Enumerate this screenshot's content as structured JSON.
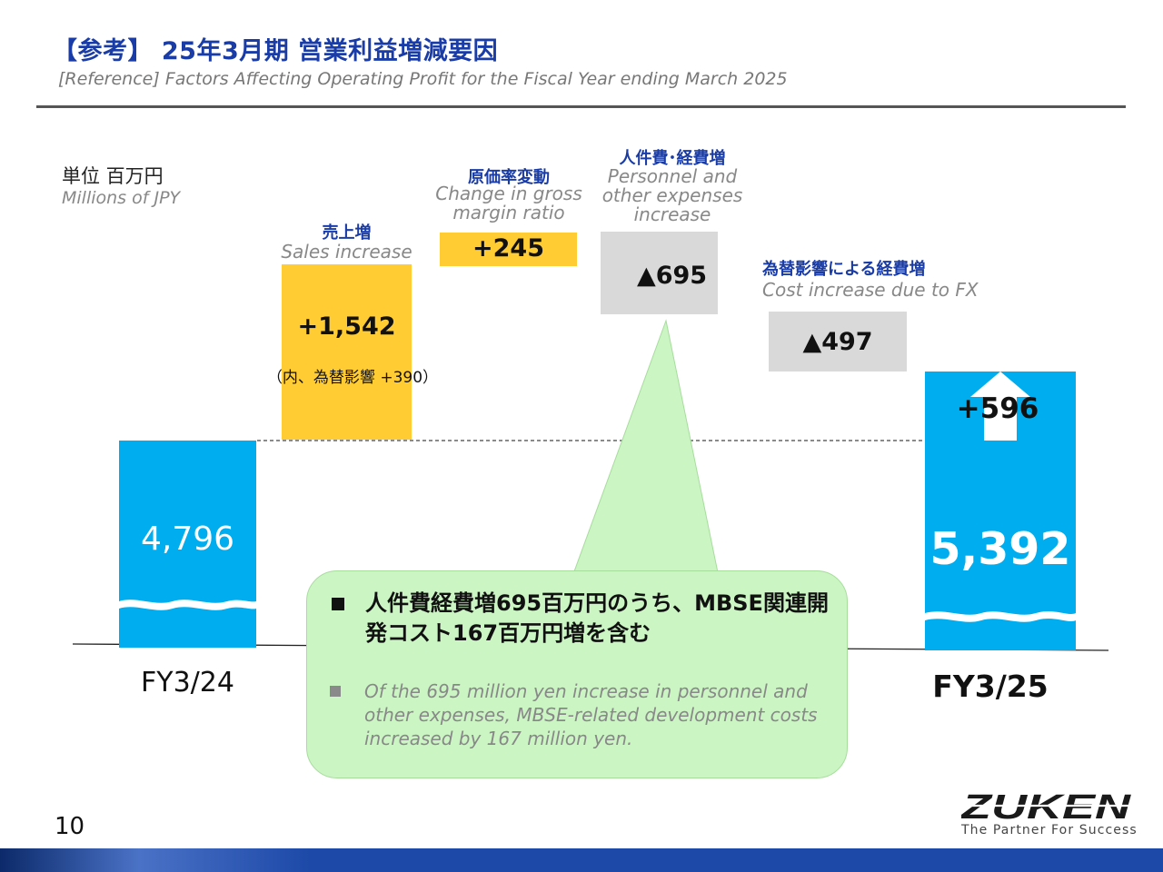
{
  "header": {
    "title_jp": "【参考】 25年3月期 営業利益増減要因",
    "title_en": "[Reference] Factors Affecting Operating Profit for the Fiscal Year ending March 2025"
  },
  "unit": {
    "jp": "単位 百万円",
    "en": "Millions of JPY"
  },
  "steps": {
    "sales": {
      "label_jp": "売上増",
      "label_en": "Sales increase",
      "value_label": "+1,542",
      "note": "（内、為替影響 +390）"
    },
    "gross_margin": {
      "label_jp": "原価率変動",
      "label_en_lines": [
        "Change in gross",
        "margin ratio"
      ],
      "value_label": "+245"
    },
    "personnel": {
      "label_jp": "人件費･経費増",
      "label_en_lines": [
        "Personnel and",
        "other expenses",
        "increase"
      ],
      "value_label": "▲695"
    },
    "fx_cost": {
      "label_jp": "為替影響による経費増",
      "label_en": "Cost increase due to FX",
      "value_label": "▲497"
    },
    "fy24": {
      "category": "FY3/24",
      "value_label": "4,796"
    },
    "fy25": {
      "category": "FY3/25",
      "value_label": "5,392",
      "change_label": "+596"
    }
  },
  "callout": {
    "jp": "人件費経費増695百万円のうち、MBSE関連開発コスト167百万円増を含む",
    "en": "Of the 695 million yen increase in personnel and other expenses, MBSE-related development costs increased by 167 million yen."
  },
  "footer": {
    "page_number": "10",
    "logo_text": "ZUKEN",
    "tagline": "The Partner For Success"
  },
  "colors": {
    "title_blue": "#1a3ca6",
    "base_bar": "#00aeef",
    "increase_bar": "#ffcc33",
    "decrease_bar": "#d9d9d9",
    "callout_bg": "#ccf5c4",
    "footer_blue": "#1d49a8"
  },
  "chart_data": {
    "type": "waterfall",
    "unit": "Millions of JPY",
    "categories": [
      "FY3/24",
      "Sales increase",
      "Change in gross margin ratio",
      "Personnel and other expenses increase",
      "Cost increase due to FX",
      "FY3/25"
    ],
    "values": [
      4796,
      1542,
      245,
      -695,
      -497,
      5392
    ],
    "measure": [
      "absolute",
      "relative",
      "relative",
      "relative",
      "relative",
      "total"
    ],
    "annotations": {
      "fx_impact_in_sales_increase": 390,
      "net_change": 596
    }
  }
}
